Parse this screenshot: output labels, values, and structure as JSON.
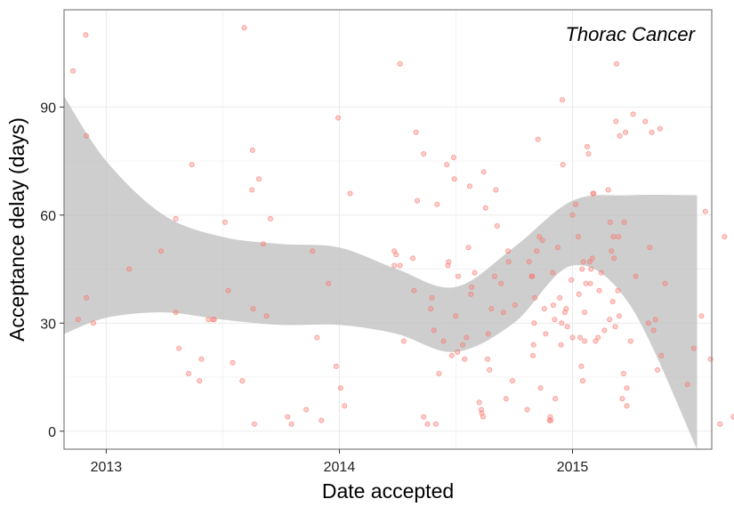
{
  "chart_data": {
    "type": "scatter",
    "title": "Thorac Cancer",
    "xlabel": "Date accepted",
    "ylabel": "Acceptance delay (days)",
    "xlim": [
      "2012-10-27",
      "2015-08-07"
    ],
    "ylim": [
      -5,
      117
    ],
    "x_ticks": [
      "2013-01-01",
      "2014-01-01",
      "2015-01-01"
    ],
    "x_tick_labels": [
      "2013",
      "2014",
      "2015"
    ],
    "y_ticks": [
      0,
      30,
      60,
      90
    ],
    "y_tick_labels": [
      "0",
      "30",
      "60",
      "90"
    ],
    "grid": true,
    "colors": {
      "points": "#f8766d",
      "ribbon": "#bdbdbd",
      "panel_border": "#7f7f7f",
      "grid": "#ebebeb"
    },
    "smooth": {
      "x": [
        "2012-10-27",
        "2013-01-01",
        "2013-04-01",
        "2013-07-01",
        "2013-10-01",
        "2014-01-01",
        "2014-04-01",
        "2014-07-01",
        "2014-10-01",
        "2015-01-01",
        "2015-04-01",
        "2015-07-15"
      ],
      "lower": [
        27,
        31.5,
        33,
        31,
        29.5,
        29.5,
        27,
        22,
        30,
        46,
        35,
        -5
      ],
      "upper": [
        93,
        75,
        60,
        54,
        52,
        51,
        45,
        40,
        51,
        64,
        65.5,
        65.5
      ]
    },
    "series": [
      {
        "points": [
          {
            "x": "2012-11-10",
            "y": 100
          },
          {
            "x": "2012-11-18",
            "y": 31
          },
          {
            "x": "2012-11-30",
            "y": 110
          },
          {
            "x": "2012-12-01",
            "y": 82
          },
          {
            "x": "2012-12-01",
            "y": 37
          },
          {
            "x": "2012-12-12",
            "y": 30
          },
          {
            "x": "2013-02-06",
            "y": 45
          },
          {
            "x": "2013-03-28",
            "y": 50
          },
          {
            "x": "2013-04-20",
            "y": 59
          },
          {
            "x": "2013-04-20",
            "y": 33
          },
          {
            "x": "2013-04-25",
            "y": 23
          },
          {
            "x": "2013-05-10",
            "y": 16
          },
          {
            "x": "2013-05-15",
            "y": 74
          },
          {
            "x": "2013-05-27",
            "y": 14
          },
          {
            "x": "2013-05-30",
            "y": 20
          },
          {
            "x": "2013-06-10",
            "y": 31
          },
          {
            "x": "2013-06-17",
            "y": 31
          },
          {
            "x": "2013-06-19",
            "y": 31
          },
          {
            "x": "2013-07-06",
            "y": 58
          },
          {
            "x": "2013-07-11",
            "y": 39
          },
          {
            "x": "2013-07-18",
            "y": 19
          },
          {
            "x": "2013-08-02",
            "y": 14
          },
          {
            "x": "2013-08-05",
            "y": 112
          },
          {
            "x": "2013-08-17",
            "y": 67
          },
          {
            "x": "2013-08-18",
            "y": 78
          },
          {
            "x": "2013-08-19",
            "y": 34
          },
          {
            "x": "2013-08-21",
            "y": 2
          },
          {
            "x": "2013-08-28",
            "y": 70
          },
          {
            "x": "2013-09-04",
            "y": 52
          },
          {
            "x": "2013-09-09",
            "y": 32
          },
          {
            "x": "2013-09-15",
            "y": 59
          },
          {
            "x": "2013-10-12",
            "y": 4
          },
          {
            "x": "2013-10-18",
            "y": 2
          },
          {
            "x": "2013-11-10",
            "y": 6
          },
          {
            "x": "2013-11-20",
            "y": 50
          },
          {
            "x": "2013-11-27",
            "y": 26
          },
          {
            "x": "2013-12-04",
            "y": 3
          },
          {
            "x": "2013-12-15",
            "y": 41
          },
          {
            "x": "2013-12-27",
            "y": 18
          },
          {
            "x": "2013-12-30",
            "y": 87
          },
          {
            "x": "2014-01-03",
            "y": 12
          },
          {
            "x": "2014-01-09",
            "y": 7
          },
          {
            "x": "2014-01-18",
            "y": 66
          },
          {
            "x": "2014-03-28",
            "y": 46
          },
          {
            "x": "2014-03-28",
            "y": 50
          },
          {
            "x": "2014-03-31",
            "y": 49
          },
          {
            "x": "2014-04-06",
            "y": 46
          },
          {
            "x": "2014-04-06",
            "y": 102
          },
          {
            "x": "2014-04-12",
            "y": 25
          },
          {
            "x": "2014-04-26",
            "y": 48
          },
          {
            "x": "2014-04-28",
            "y": 39
          },
          {
            "x": "2014-05-01",
            "y": 83
          },
          {
            "x": "2014-05-03",
            "y": 64
          },
          {
            "x": "2014-05-13",
            "y": 4
          },
          {
            "x": "2014-05-13",
            "y": 77
          },
          {
            "x": "2014-05-19",
            "y": 2
          },
          {
            "x": "2014-05-24",
            "y": 34
          },
          {
            "x": "2014-05-26",
            "y": 37
          },
          {
            "x": "2014-05-29",
            "y": 28
          },
          {
            "x": "2014-06-01",
            "y": 2
          },
          {
            "x": "2014-06-03",
            "y": 63
          },
          {
            "x": "2014-06-06",
            "y": 16
          },
          {
            "x": "2014-06-13",
            "y": 25
          },
          {
            "x": "2014-06-18",
            "y": 74
          },
          {
            "x": "2014-06-20",
            "y": 46
          },
          {
            "x": "2014-06-21",
            "y": 47
          },
          {
            "x": "2014-06-26",
            "y": 21
          },
          {
            "x": "2014-06-29",
            "y": 76
          },
          {
            "x": "2014-06-30",
            "y": 70
          },
          {
            "x": "2014-07-02",
            "y": 32
          },
          {
            "x": "2014-07-05",
            "y": 22
          },
          {
            "x": "2014-07-06",
            "y": 43
          },
          {
            "x": "2014-07-13",
            "y": 24
          },
          {
            "x": "2014-07-16",
            "y": 20
          },
          {
            "x": "2014-07-19",
            "y": 26
          },
          {
            "x": "2014-07-22",
            "y": 51
          },
          {
            "x": "2014-07-24",
            "y": 68
          },
          {
            "x": "2014-07-26",
            "y": 38
          },
          {
            "x": "2014-07-27",
            "y": 40
          },
          {
            "x": "2014-08-01",
            "y": 44
          },
          {
            "x": "2014-08-08",
            "y": 8
          },
          {
            "x": "2014-08-11",
            "y": 6
          },
          {
            "x": "2014-08-12",
            "y": 5
          },
          {
            "x": "2014-08-14",
            "y": 4
          },
          {
            "x": "2014-08-15",
            "y": 72
          },
          {
            "x": "2014-08-18",
            "y": 62
          },
          {
            "x": "2014-08-21",
            "y": 20
          },
          {
            "x": "2014-08-22",
            "y": 27
          },
          {
            "x": "2014-08-24",
            "y": 17
          },
          {
            "x": "2014-08-27",
            "y": 34
          },
          {
            "x": "2014-09-01",
            "y": 43
          },
          {
            "x": "2014-09-03",
            "y": 67
          },
          {
            "x": "2014-09-05",
            "y": 57
          },
          {
            "x": "2014-09-11",
            "y": 41
          },
          {
            "x": "2014-09-15",
            "y": 33
          },
          {
            "x": "2014-09-19",
            "y": 9
          },
          {
            "x": "2014-09-22",
            "y": 50
          },
          {
            "x": "2014-09-23",
            "y": 47
          },
          {
            "x": "2014-09-29",
            "y": 14
          },
          {
            "x": "2014-10-03",
            "y": 35
          },
          {
            "x": "2014-10-22",
            "y": 6
          },
          {
            "x": "2014-10-25",
            "y": 47
          },
          {
            "x": "2014-10-29",
            "y": 43
          },
          {
            "x": "2014-10-30",
            "y": 43
          },
          {
            "x": "2014-10-31",
            "y": 21
          },
          {
            "x": "2014-11-01",
            "y": 24
          },
          {
            "x": "2014-11-02",
            "y": 30
          },
          {
            "x": "2014-11-03",
            "y": 37
          },
          {
            "x": "2014-11-06",
            "y": 50
          },
          {
            "x": "2014-11-08",
            "y": 81
          },
          {
            "x": "2014-11-10",
            "y": 54
          },
          {
            "x": "2014-11-12",
            "y": 12
          },
          {
            "x": "2014-11-15",
            "y": 53
          },
          {
            "x": "2014-11-18",
            "y": 34
          },
          {
            "x": "2014-11-20",
            "y": 27
          },
          {
            "x": "2014-11-26",
            "y": 3
          },
          {
            "x": "2014-11-27",
            "y": 4
          },
          {
            "x": "2014-11-28",
            "y": 3
          },
          {
            "x": "2014-12-01",
            "y": 44
          },
          {
            "x": "2014-12-02",
            "y": 35
          },
          {
            "x": "2014-12-04",
            "y": 31
          },
          {
            "x": "2014-12-05",
            "y": 9
          },
          {
            "x": "2014-12-09",
            "y": 51
          },
          {
            "x": "2014-12-12",
            "y": 37
          },
          {
            "x": "2014-12-14",
            "y": 24
          },
          {
            "x": "2014-12-15",
            "y": 30
          },
          {
            "x": "2014-12-16",
            "y": 92
          },
          {
            "x": "2014-12-17",
            "y": 74
          },
          {
            "x": "2014-12-20",
            "y": 33
          },
          {
            "x": "2014-12-22",
            "y": 34
          },
          {
            "x": "2014-12-24",
            "y": 29
          },
          {
            "x": "2014-12-30",
            "y": 42
          },
          {
            "x": "2015-01-01",
            "y": 60
          },
          {
            "x": "2015-01-01",
            "y": 26
          },
          {
            "x": "2015-01-06",
            "y": 63
          },
          {
            "x": "2015-01-10",
            "y": 54
          },
          {
            "x": "2015-01-11",
            "y": 38
          },
          {
            "x": "2015-01-13",
            "y": 26
          },
          {
            "x": "2015-01-15",
            "y": 18
          },
          {
            "x": "2015-01-16",
            "y": 45
          },
          {
            "x": "2015-01-17",
            "y": 14
          },
          {
            "x": "2015-01-18",
            "y": 47
          },
          {
            "x": "2015-01-20",
            "y": 25
          },
          {
            "x": "2015-01-20",
            "y": 33
          },
          {
            "x": "2015-01-22",
            "y": 41
          },
          {
            "x": "2015-01-24",
            "y": 79
          },
          {
            "x": "2015-01-26",
            "y": 77
          },
          {
            "x": "2015-01-28",
            "y": 47
          },
          {
            "x": "2015-01-29",
            "y": 41
          },
          {
            "x": "2015-01-30",
            "y": 45
          },
          {
            "x": "2015-02-01",
            "y": 48
          },
          {
            "x": "2015-02-02",
            "y": 66
          },
          {
            "x": "2015-02-03",
            "y": 66
          },
          {
            "x": "2015-02-06",
            "y": 25
          },
          {
            "x": "2015-02-10",
            "y": 26
          },
          {
            "x": "2015-02-12",
            "y": 39
          },
          {
            "x": "2015-02-15",
            "y": 44
          },
          {
            "x": "2015-02-20",
            "y": 28
          },
          {
            "x": "2015-02-26",
            "y": 67
          },
          {
            "x": "2015-02-28",
            "y": 31
          },
          {
            "x": "2015-03-01",
            "y": 58
          },
          {
            "x": "2015-03-03",
            "y": 50
          },
          {
            "x": "2015-03-05",
            "y": 36
          },
          {
            "x": "2015-03-06",
            "y": 54
          },
          {
            "x": "2015-03-07",
            "y": 48
          },
          {
            "x": "2015-03-09",
            "y": 29
          },
          {
            "x": "2015-03-10",
            "y": 86
          },
          {
            "x": "2015-03-11",
            "y": 102
          },
          {
            "x": "2015-03-13",
            "y": 39
          },
          {
            "x": "2015-03-14",
            "y": 54
          },
          {
            "x": "2015-03-15",
            "y": 32
          },
          {
            "x": "2015-03-16",
            "y": 82
          },
          {
            "x": "2015-03-20",
            "y": 9
          },
          {
            "x": "2015-03-22",
            "y": 16
          },
          {
            "x": "2015-03-23",
            "y": 58
          },
          {
            "x": "2015-03-25",
            "y": 83
          },
          {
            "x": "2015-03-27",
            "y": 7
          },
          {
            "x": "2015-03-27",
            "y": 12
          },
          {
            "x": "2015-04-02",
            "y": 25
          },
          {
            "x": "2015-04-06",
            "y": 88
          },
          {
            "x": "2015-04-10",
            "y": 43
          },
          {
            "x": "2015-04-25",
            "y": 86
          },
          {
            "x": "2015-04-30",
            "y": 30
          },
          {
            "x": "2015-05-02",
            "y": 51
          },
          {
            "x": "2015-05-05",
            "y": 83
          },
          {
            "x": "2015-05-08",
            "y": 28
          },
          {
            "x": "2015-05-11",
            "y": 31
          },
          {
            "x": "2015-05-14",
            "y": 17
          },
          {
            "x": "2015-05-18",
            "y": 84
          },
          {
            "x": "2015-05-20",
            "y": 21
          },
          {
            "x": "2015-05-26",
            "y": 41
          },
          {
            "x": "2015-06-30",
            "y": 13
          },
          {
            "x": "2015-07-10",
            "y": 23
          },
          {
            "x": "2015-07-22",
            "y": 32
          },
          {
            "x": "2015-07-28",
            "y": 61
          },
          {
            "x": "2015-08-05",
            "y": 20
          },
          {
            "x": "2015-08-20",
            "y": 2
          },
          {
            "x": "2015-08-27",
            "y": 54
          },
          {
            "x": "2015-09-10",
            "y": 4
          }
        ]
      }
    ]
  }
}
